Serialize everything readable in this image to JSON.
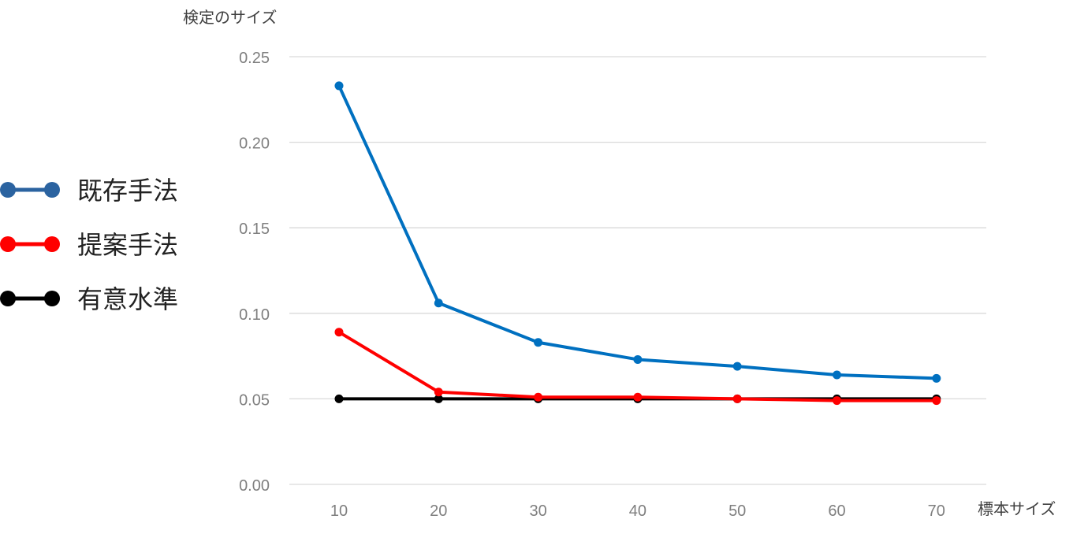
{
  "chart_data": {
    "type": "line",
    "title": "",
    "ylabel": "検定のサイズ",
    "xlabel": "標本サイズ",
    "x": [
      10,
      20,
      30,
      40,
      50,
      60,
      70
    ],
    "ylim": [
      0,
      0.25
    ],
    "yticks": [
      "0.00",
      "0.05",
      "0.10",
      "0.15",
      "0.20",
      "0.25"
    ],
    "xticks": [
      "10",
      "20",
      "30",
      "40",
      "50",
      "60",
      "70"
    ],
    "grid": true,
    "legend_position": "left",
    "series": [
      {
        "name": "既存手法",
        "color": "#0070c0",
        "legend_color": "#2b63a0",
        "values": [
          0.233,
          0.106,
          0.083,
          0.073,
          0.069,
          0.064,
          0.062
        ]
      },
      {
        "name": "提案手法",
        "color": "#ff0000",
        "legend_color": "#ff0000",
        "values": [
          0.089,
          0.054,
          0.051,
          0.051,
          0.05,
          0.049,
          0.049
        ]
      },
      {
        "name": "有意水準",
        "color": "#000000",
        "legend_color": "#000000",
        "values": [
          0.05,
          0.05,
          0.05,
          0.05,
          0.05,
          0.05,
          0.05
        ]
      }
    ]
  }
}
